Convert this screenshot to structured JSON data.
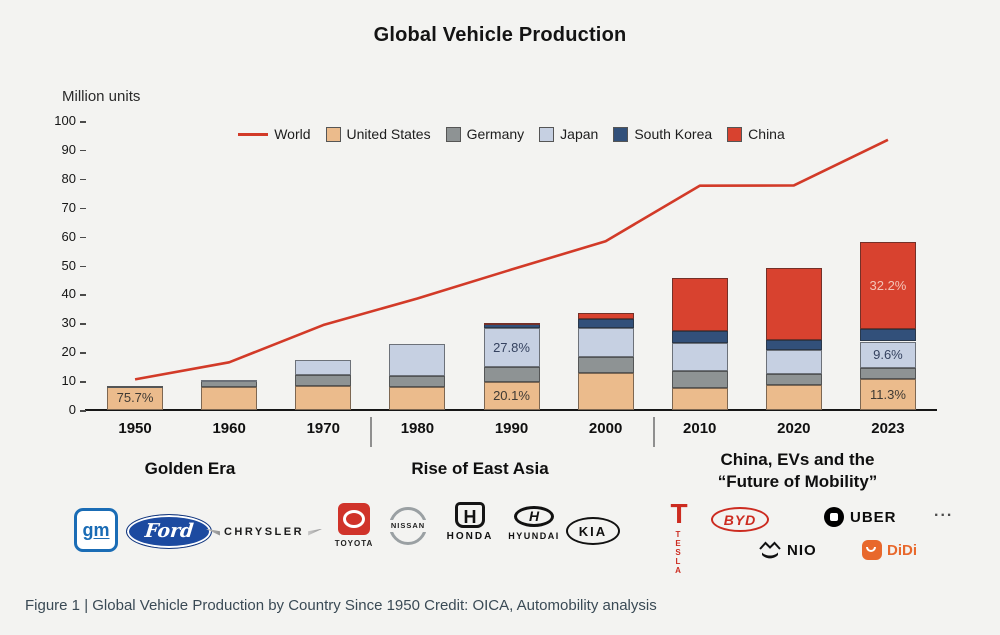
{
  "title": "Global Vehicle Production",
  "y_axis_label": "Million units",
  "caption": "Figure 1 | Global Vehicle Production by Country Since 1950 Credit: OICA, Automobility analysis",
  "colors": {
    "world_line": "#d23a28",
    "united_states": "#ebbb8c",
    "germany": "#8e9394",
    "japan": "#c6d0e2",
    "south_korea": "#32507a",
    "china": "#d8422f",
    "background": "#f3f3f1",
    "caption_text": "#3a4a55"
  },
  "legend": [
    {
      "label": "World",
      "type": "line",
      "color": "#d23a28"
    },
    {
      "label": "United States",
      "type": "box",
      "color": "#ebbb8c"
    },
    {
      "label": "Germany",
      "type": "box",
      "color": "#8e9394"
    },
    {
      "label": "Japan",
      "type": "box",
      "color": "#c6d0e2"
    },
    {
      "label": "South Korea",
      "type": "box",
      "color": "#32507a"
    },
    {
      "label": "China",
      "type": "box",
      "color": "#d8422f"
    }
  ],
  "chart_data": {
    "type": "bar",
    "stacked": true,
    "title": "Global Vehicle Production",
    "ylabel": "Million units",
    "ylim": [
      0,
      100
    ],
    "yticks": [
      0,
      10,
      20,
      30,
      40,
      50,
      60,
      70,
      80,
      90,
      100
    ],
    "grid": false,
    "legend_position": "top",
    "categories": [
      "1950",
      "1960",
      "1970",
      "1980",
      "1990",
      "2000",
      "2010",
      "2020",
      "2023"
    ],
    "series": [
      {
        "name": "United States",
        "values": [
          8.0,
          7.9,
          8.3,
          8.0,
          9.8,
          12.8,
          7.7,
          8.8,
          10.6
        ]
      },
      {
        "name": "Germany",
        "values": [
          0.3,
          2.1,
          3.8,
          3.9,
          5.0,
          5.5,
          5.9,
          3.7,
          4.1
        ]
      },
      {
        "name": "Japan",
        "values": [
          0.03,
          0.5,
          5.3,
          11.0,
          13.5,
          10.1,
          9.6,
          8.1,
          9.0
        ]
      },
      {
        "name": "South Korea",
        "values": [
          0,
          0,
          0.03,
          0.12,
          1.3,
          3.1,
          4.3,
          3.5,
          4.2
        ]
      },
      {
        "name": "China",
        "values": [
          0,
          0,
          0.1,
          0.2,
          0.5,
          2.1,
          18.3,
          25.2,
          30.2
        ]
      }
    ],
    "line_series": {
      "name": "World",
      "values": [
        10.6,
        16.5,
        29.4,
        38.6,
        48.6,
        58.4,
        77.6,
        77.7,
        93.5
      ]
    },
    "annotations": [
      {
        "year": "1950",
        "segment": "United States",
        "text": "75.7%",
        "color": "#3f3a34"
      },
      {
        "year": "1990",
        "segment": "United States",
        "text": "20.1%",
        "color": "#3f3a34"
      },
      {
        "year": "1990",
        "segment": "Japan",
        "text": "27.8%",
        "color": "#35425f"
      },
      {
        "year": "2023",
        "segment": "United States",
        "text": "11.3%",
        "color": "#3f3a34"
      },
      {
        "year": "2023",
        "segment": "Japan",
        "text": "9.6%",
        "color": "#35425f"
      },
      {
        "year": "2023",
        "segment": "China",
        "text": "32.2%",
        "color": "#f3c4b8"
      }
    ]
  },
  "eras": [
    {
      "line1": "Golden Era",
      "line2": ""
    },
    {
      "line1": "Rise of East Asia",
      "line2": ""
    },
    {
      "line1": "China, EVs and the",
      "line2": "“Future of Mobility”"
    }
  ],
  "logos": {
    "gm": "gm",
    "ford": "Ford",
    "chrysler": "CHRYSLER",
    "toyota": "TOYOTA",
    "nissan": "NISSAN",
    "honda": "HONDA",
    "honda_mark": "H",
    "hyundai": "HYUNDAI",
    "hyundai_mark": "H",
    "kia": "KIA",
    "tesla": "TESLA",
    "tesla_mark": "T",
    "byd": "BYD",
    "uber": "UBER",
    "nio": "NIO",
    "didi": "DiDi",
    "more": "..."
  }
}
